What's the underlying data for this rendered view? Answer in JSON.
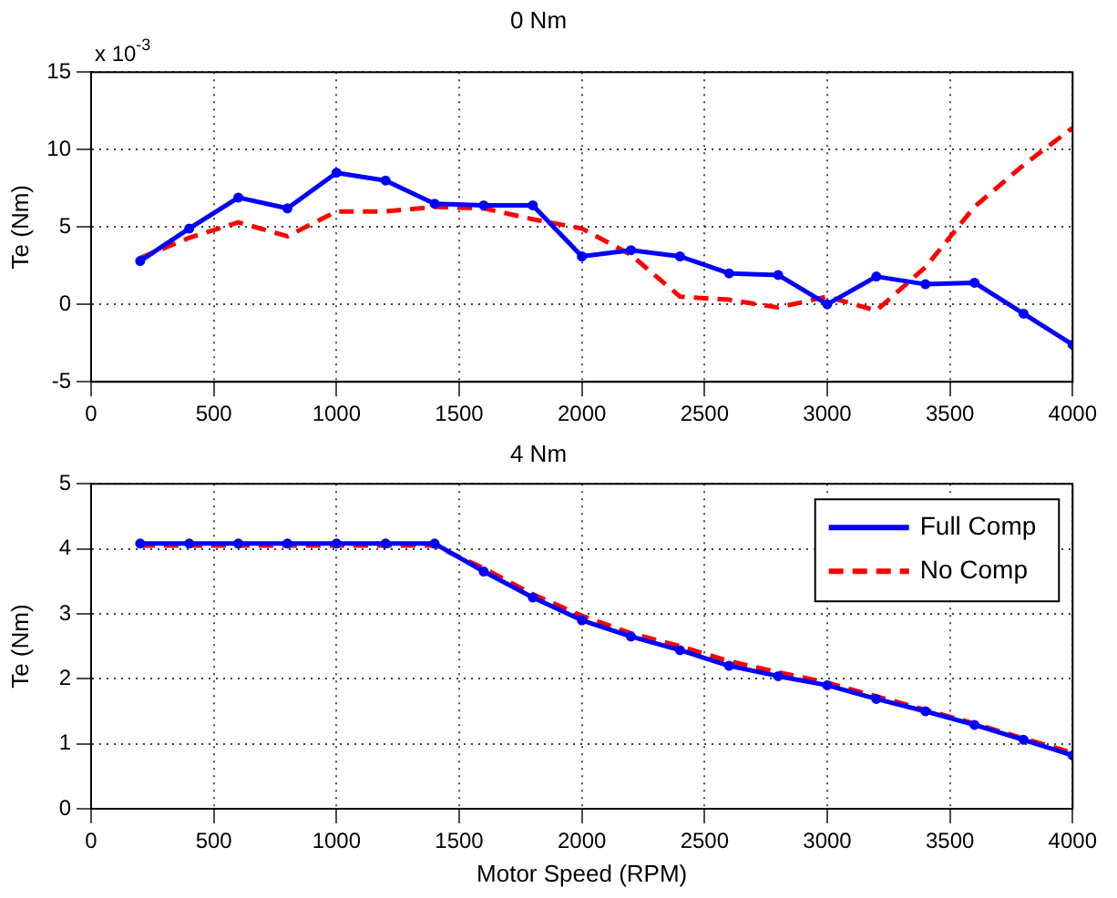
{
  "chart_data": [
    {
      "type": "line",
      "title": "0 Nm",
      "ylabel": "Te (Nm)",
      "annotations": [
        "x 10$^{-3}$"
      ],
      "x": [
        200,
        400,
        600,
        800,
        1000,
        1200,
        1400,
        1600,
        1800,
        2000,
        2200,
        2400,
        2600,
        2800,
        3000,
        3200,
        3400,
        3600,
        3800,
        4000
      ],
      "xlim": [
        0,
        4000
      ],
      "xticks": [
        0,
        500,
        1000,
        1500,
        2000,
        2500,
        3000,
        3500,
        4000
      ],
      "ylim": [
        -5,
        15
      ],
      "yticks": [
        -5,
        0,
        5,
        10,
        15
      ],
      "grid": true,
      "legend": false,
      "series": [
        {
          "color": "#0000ff",
          "marker": "circle",
          "line_style": "solid",
          "values": [
            2.8,
            4.9,
            6.9,
            6.2,
            8.5,
            8.0,
            6.5,
            6.4,
            6.4,
            3.1,
            3.5,
            3.1,
            2.0,
            1.9,
            0.0,
            1.8,
            1.3,
            1.4,
            -0.6,
            -2.6
          ]
        },
        {
          "color": "#ff0000",
          "marker": "none",
          "line_style": "dashed",
          "values": [
            3.0,
            4.3,
            5.3,
            4.4,
            6.0,
            6.0,
            6.3,
            6.2,
            5.5,
            4.9,
            3.2,
            0.5,
            0.3,
            -0.2,
            0.5,
            -0.4,
            2.4,
            6.3,
            9.0,
            11.4
          ]
        }
      ]
    },
    {
      "type": "line",
      "title": "4 Nm",
      "xlabel": "Motor Speed (RPM)",
      "ylabel": "Te (Nm)",
      "x": [
        200,
        400,
        600,
        800,
        1000,
        1200,
        1400,
        1600,
        1800,
        2000,
        2200,
        2400,
        2600,
        2800,
        3000,
        3200,
        3400,
        3600,
        3800,
        4000
      ],
      "xlim": [
        0,
        4000
      ],
      "xticks": [
        0,
        500,
        1000,
        1500,
        2000,
        2500,
        3000,
        3500,
        4000
      ],
      "ylim": [
        0,
        5
      ],
      "yticks": [
        0,
        1,
        2,
        3,
        4,
        5
      ],
      "grid": true,
      "legend": "top right",
      "series": [
        {
          "name": "Full Comp",
          "color": "#0000ff",
          "marker": "circle",
          "line_style": "solid",
          "values": [
            4.08,
            4.08,
            4.08,
            4.08,
            4.08,
            4.08,
            4.08,
            3.65,
            3.25,
            2.9,
            2.65,
            2.44,
            2.2,
            2.04,
            1.9,
            1.69,
            1.5,
            1.29,
            1.06,
            0.82
          ]
        },
        {
          "name": "No Comp",
          "color": "#ff0000",
          "marker": "none",
          "line_style": "dashed",
          "values": [
            4.05,
            4.05,
            4.05,
            4.05,
            4.05,
            4.05,
            4.05,
            3.7,
            3.3,
            2.97,
            2.7,
            2.5,
            2.27,
            2.1,
            1.94,
            1.73,
            1.52,
            1.31,
            1.08,
            0.86
          ]
        }
      ]
    }
  ]
}
